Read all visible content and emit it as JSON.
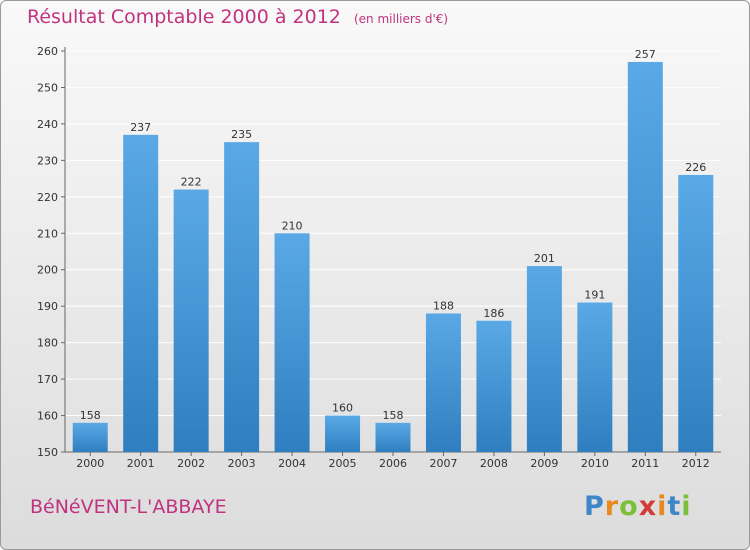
{
  "header": {
    "title": "Résultat Comptable 2000 à 2012",
    "unit": "(en milliers d'€)"
  },
  "commune": "BéNéVENT-L'ABBAYE",
  "brand": {
    "letters": [
      "P",
      "r",
      "o",
      "x",
      "i",
      "t",
      "i"
    ],
    "colors": [
      "#3f86c8",
      "#e8891e",
      "#7bbf3a",
      "#d23b36",
      "#e8891e",
      "#3f86c8",
      "#7bbf3a"
    ]
  },
  "colors": {
    "bar_light": "#5aa9e6",
    "bar_dark": "#2f7fc0",
    "title": "#c0337f",
    "grid": "#ffffff"
  },
  "chart_data": {
    "type": "bar",
    "title": "Résultat Comptable 2000 à 2012",
    "xlabel": "",
    "ylabel": "",
    "categories": [
      "2000",
      "2001",
      "2002",
      "2003",
      "2004",
      "2005",
      "2006",
      "2007",
      "2008",
      "2009",
      "2010",
      "2011",
      "2012"
    ],
    "values": [
      158,
      237,
      222,
      235,
      210,
      160,
      158,
      188,
      186,
      201,
      191,
      257,
      226
    ],
    "ylim": [
      150,
      260
    ],
    "yticks": [
      150,
      160,
      170,
      180,
      190,
      200,
      210,
      220,
      230,
      240,
      250,
      260
    ],
    "grid": true
  }
}
